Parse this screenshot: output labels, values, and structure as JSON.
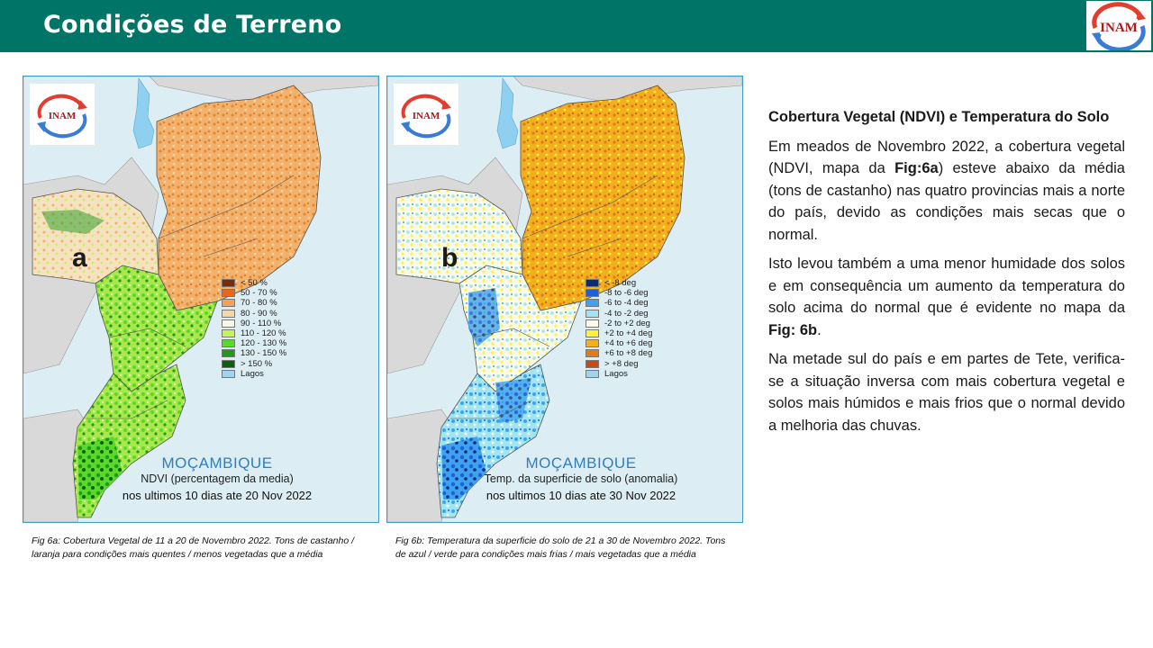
{
  "header": {
    "title": "Condições de Terreno",
    "logo_text": "INAM"
  },
  "map_a": {
    "panel_letter": "a",
    "logo_text": "INAM",
    "country": "MOÇAMBIQUE",
    "subtitle": "NDVI (percentagem da media)",
    "period": "nos ultimos 10 dias ate 20 Nov 2022",
    "legend": [
      {
        "label": "< 50 %",
        "color": "#7a2a10"
      },
      {
        "label": "50 - 70 %",
        "color": "#e8661c"
      },
      {
        "label": "70 - 80 %",
        "color": "#f2a35a"
      },
      {
        "label": "80 - 90 %",
        "color": "#f6d7a0"
      },
      {
        "label": "90 - 110 %",
        "color": "#f7f7e8"
      },
      {
        "label": "110 - 120 %",
        "color": "#c6f25a"
      },
      {
        "label": "120 - 130 %",
        "color": "#5bd82a"
      },
      {
        "label": "130 - 150 %",
        "color": "#1f9a1f"
      },
      {
        "label": "> 150 %",
        "color": "#0b5e0b"
      },
      {
        "label": "Lagos",
        "color": "#9fd3ef"
      }
    ]
  },
  "map_b": {
    "panel_letter": "b",
    "logo_text": "INAM",
    "country": "MOÇAMBIQUE",
    "subtitle": "Temp. da superficie de solo (anomalia)",
    "period": "nos ultimos 10 dias ate 30 Nov 2022",
    "legend": [
      {
        "label": "< -8 deg",
        "color": "#0a2a7a"
      },
      {
        "label": "-8 to -6 deg",
        "color": "#1f5fd8"
      },
      {
        "label": "-6 to -4 deg",
        "color": "#3ea2ee"
      },
      {
        "label": "-4 to -2 deg",
        "color": "#9fe6f2"
      },
      {
        "label": "-2 to +2 deg",
        "color": "#fafae6"
      },
      {
        "label": "+2 to +4 deg",
        "color": "#fff23a"
      },
      {
        "label": "+4 to +6 deg",
        "color": "#f2b01f"
      },
      {
        "label": "+6 to +8 deg",
        "color": "#e07a1a"
      },
      {
        "label": "> +8 deg",
        "color": "#c84a14"
      },
      {
        "label": "Lagos",
        "color": "#9fd3ef"
      }
    ]
  },
  "captions": {
    "a_label": "Fig 6a",
    "a_text": ":  Cobertura Vegetal de 11 a 20 de Novembro 2022. Tons de castanho / laranja para condições mais quentes / menos vegetadas que a média",
    "b_label": "Fig 6b",
    "b_text": ": Temperatura da superficie do solo de 21 a 30 de Novembro 2022. Tons de azul  / verde para condições mais frias / mais vegetadas que a média"
  },
  "text": {
    "heading": "Cobertura Vegetal (NDVI) e Temperatura do Solo",
    "p1_a": "Em meados de Novembro 2022, a cobertura vegetal (NDVI, mapa da ",
    "p1_b": "Fig:6a",
    "p1_c": ") esteve abaixo da média (tons de castanho) nas quatro provincias mais a norte do país, devido as condições mais secas que o normal.",
    "p2_a": "Isto levou também a uma menor humidade dos solos e em consequência um aumento da temperatura do solo acima do normal que é evidente no mapa da ",
    "p2_b": "Fig: 6b",
    "p2_c": ".",
    "p3": "Na metade sul do país e em partes de Tete, verifica-se a situação inversa com mais cobertura vegetal e solos mais húmidos e mais frios que o normal devido a melhoria das chuvas."
  },
  "colors": {
    "header_bg": "#007466",
    "map_sea": "#dcedf3",
    "neighbor": "#d9d9d9",
    "lake": "#8fd0f0",
    "title_blue": "#2f7fbf",
    "logo_red": "#e53c2e",
    "logo_blue": "#3a7bd5"
  }
}
